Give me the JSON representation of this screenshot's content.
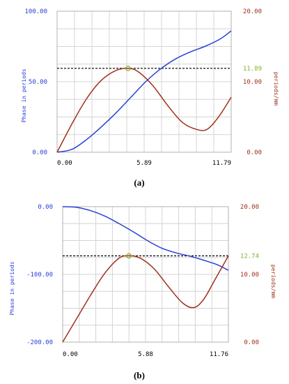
{
  "colors": {
    "left_axis": "#2a3fd8",
    "right_axis": "#a0301a",
    "phase_curve": "#2a3fd8",
    "freq_curve": "#a0301a",
    "marker": "#7fb22a",
    "dashed": "#111111",
    "grid": "#d4d4d4",
    "frame": "#b0b0b0"
  },
  "chart_data": [
    {
      "type": "line",
      "panel_label": "(a)",
      "xlim": [
        0,
        11.79
      ],
      "x_ticks": [
        "0.00",
        "5.89",
        "11.79"
      ],
      "left_axis": {
        "label": "Phase in periods",
        "ylim": [
          0,
          100
        ],
        "ticks": [
          "0.00",
          "50.00",
          "100.00"
        ],
        "tick_values": [
          0,
          50,
          100
        ]
      },
      "right_axis": {
        "label": "periods/mm",
        "ylim": [
          0,
          20
        ],
        "ticks": [
          "0.00",
          "10.00",
          "20.00"
        ],
        "tick_values": [
          0,
          10,
          20
        ]
      },
      "marker_label": "11.89",
      "dashed_level": 11.89,
      "marker_x": 4.8,
      "grid": true,
      "series": [
        {
          "axis": "left",
          "x": [
            0,
            1,
            2,
            3,
            4,
            5,
            6,
            7,
            8,
            9,
            10,
            11,
            11.79
          ],
          "y": [
            0,
            2,
            9,
            18,
            28,
            39,
            50,
            59,
            66,
            71,
            75,
            80,
            86
          ]
        },
        {
          "axis": "right",
          "x": [
            0,
            1,
            2,
            3,
            4,
            4.8,
            5.5,
            6.5,
            7.5,
            8.5,
            9.5,
            10.2,
            11,
            11.79
          ],
          "y": [
            0,
            4,
            7.6,
            10.2,
            11.6,
            11.89,
            11.4,
            9.4,
            6.6,
            4.2,
            3.2,
            3.3,
            5.2,
            7.8
          ]
        }
      ]
    },
    {
      "type": "line",
      "panel_label": "(b)",
      "xlim": [
        0,
        11.76
      ],
      "x_ticks": [
        "0.00",
        "5.88",
        "11.76"
      ],
      "left_axis": {
        "label": "Phase in periods",
        "ylim": [
          -200,
          0
        ],
        "ticks": [
          "-200.00",
          "-100.00",
          "0.00"
        ],
        "tick_values": [
          -200,
          -100,
          0
        ]
      },
      "right_axis": {
        "label": "periods/mm",
        "ylim": [
          0,
          20
        ],
        "ticks": [
          "0.00",
          "10.00",
          "20.00"
        ],
        "tick_values": [
          0,
          10,
          20
        ]
      },
      "marker_label": "12.74",
      "dashed_level": 12.74,
      "marker_x": 4.7,
      "grid": true,
      "series": [
        {
          "axis": "left",
          "x": [
            0,
            1,
            2,
            3,
            4,
            5,
            6,
            7,
            8,
            9,
            10,
            11,
            11.76
          ],
          "y": [
            0,
            -1,
            -6,
            -14,
            -25,
            -37,
            -50,
            -61,
            -68,
            -73,
            -79,
            -86,
            -94
          ]
        },
        {
          "axis": "right",
          "x": [
            0,
            1,
            2,
            3,
            4,
            4.7,
            5.5,
            6.5,
            7.5,
            8.5,
            9.3,
            10,
            10.8,
            11.76
          ],
          "y": [
            0,
            3.5,
            7,
            10.2,
            12.4,
            12.74,
            12.4,
            10.8,
            8.2,
            5.8,
            5.1,
            6.3,
            9.2,
            12.74
          ]
        }
      ]
    }
  ]
}
